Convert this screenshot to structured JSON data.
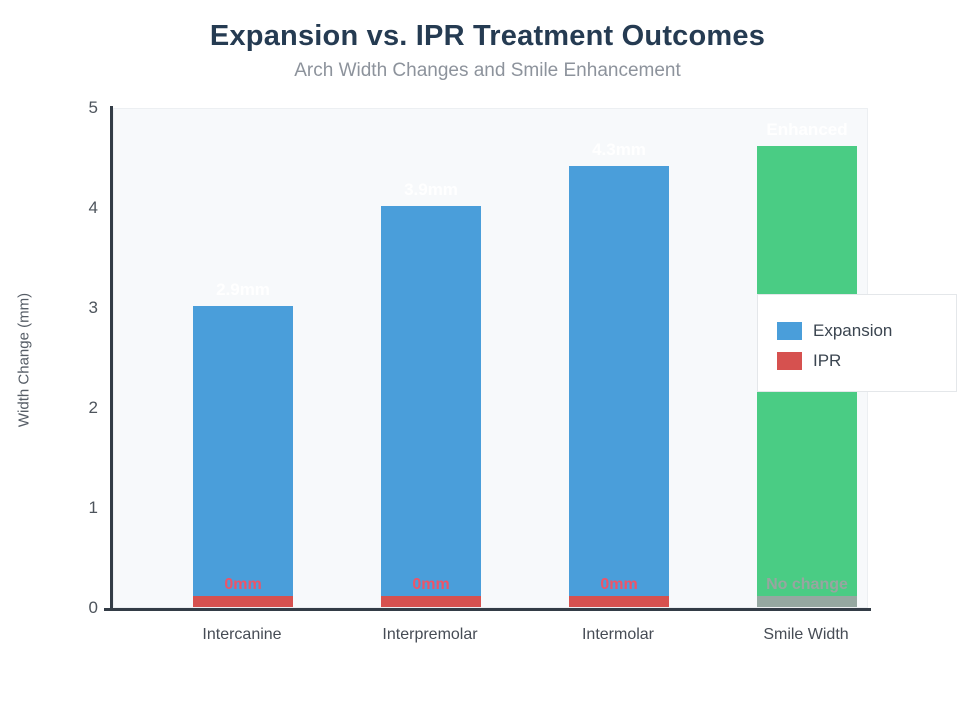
{
  "header": {
    "title": "Expansion vs. IPR Treatment Outcomes",
    "subtitle": "Arch Width Changes and Smile Enhancement"
  },
  "chart_data": {
    "type": "bar",
    "stacked": true,
    "title": "Expansion vs. IPR Treatment Outcomes",
    "subtitle": "Arch Width Changes and Smile Enhancement",
    "xlabel": "",
    "ylabel": "Width Change (mm)",
    "ylim": [
      0,
      5
    ],
    "yticks": [
      0,
      1,
      2,
      3,
      4,
      5
    ],
    "grid": false,
    "legend_position": "upper-right-overlay",
    "categories": [
      "Intercanine",
      "Interpremolar",
      "Intermolar",
      "Smile Width"
    ],
    "series": [
      {
        "name": "Expansion",
        "color": "#4a9eda",
        "values": [
          2.9,
          3.9,
          4.3,
          null
        ]
      },
      {
        "name": "IPR",
        "color": "#d6514f",
        "values": [
          0,
          0,
          0,
          null
        ]
      }
    ],
    "base_display_value": 0.11,
    "render_bars": [
      {
        "category": "Intercanine",
        "value": 2.9,
        "value_label": "2.9mm",
        "bar_color": "#4a9eda",
        "value_label_color": "#ffffff",
        "base_color": "#d6514f",
        "base_label": "0mm",
        "base_label_color": "#ee5468"
      },
      {
        "category": "Interpremolar",
        "value": 3.9,
        "value_label": "3.9mm",
        "bar_color": "#4a9eda",
        "value_label_color": "#ffffff",
        "base_color": "#d6514f",
        "base_label": "0mm",
        "base_label_color": "#ee5468"
      },
      {
        "category": "Intermolar",
        "value": 4.3,
        "value_label": "4.3mm",
        "bar_color": "#4a9eda",
        "value_label_color": "#ffffff",
        "base_color": "#d6514f",
        "base_label": "0mm",
        "base_label_color": "#ee5468"
      },
      {
        "category": "Smile Width",
        "value": 4.5,
        "value_label": "Enhanced",
        "bar_color": "#4acc84",
        "value_label_color": "#ffffff",
        "base_color": "#95a8a1",
        "base_label": "No change",
        "base_label_color": "#98a5a0"
      }
    ],
    "legend": {
      "entries": [
        {
          "label": "Expansion",
          "color": "#4a9eda"
        },
        {
          "label": "IPR",
          "color": "#d6514f"
        }
      ]
    }
  },
  "colors": {
    "title": "#253b52",
    "subtitle": "#8d939c",
    "axis": "#333c46",
    "plot_background": "#f7f9fb"
  }
}
